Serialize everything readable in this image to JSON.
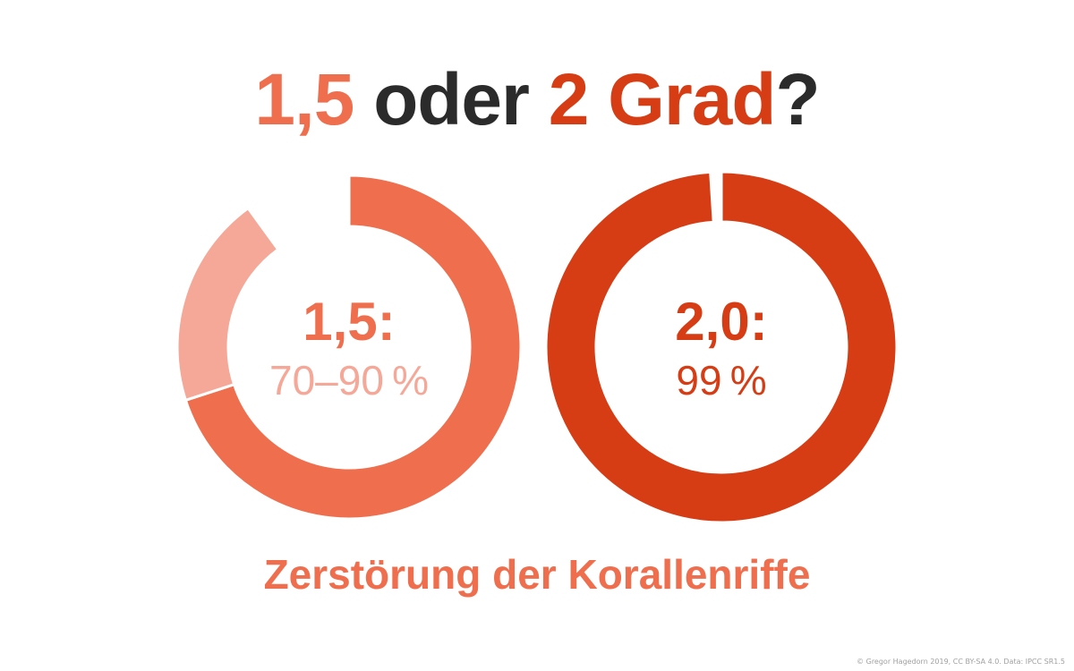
{
  "title": {
    "part1": "1,5",
    "part2": " oder ",
    "part3": "2 Grad",
    "part4": "?"
  },
  "colors": {
    "dark": "#2b2b2b",
    "orange": "#ef6e4e",
    "orange_light": "#f5a898",
    "red": "#d63d15"
  },
  "chart_data": [
    {
      "type": "pie",
      "label": "1,5:",
      "value_text": "70–90 %",
      "slices": [
        {
          "name": "70",
          "value": 70,
          "color": "#ef6e4e"
        },
        {
          "name": "20",
          "value": 20,
          "color": "#f5a898"
        },
        {
          "name": "rest",
          "value": 10,
          "color": "#ffffff"
        }
      ]
    },
    {
      "type": "pie",
      "label": "2,0:",
      "value_text": "99 %",
      "slices": [
        {
          "name": "99",
          "value": 99,
          "color": "#d63d15"
        },
        {
          "name": "rest",
          "value": 1,
          "color": "#ffffff"
        }
      ]
    }
  ],
  "caption": "Zerstörung der Korallenriffe",
  "credit": "© Gregor Hagedorn 2019, CC BY-SA 4.0. Data: IPCC SR1.5"
}
